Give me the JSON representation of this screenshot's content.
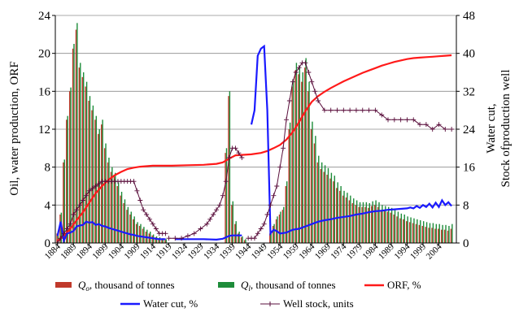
{
  "chart_data": {
    "type": "bar+line",
    "x_tick_labels": [
      "1884",
      "1889",
      "1894",
      "1899",
      "1904",
      "1909",
      "1914",
      "1919",
      "1924",
      "1929",
      "1934",
      "1939",
      "1944",
      "1949",
      "1954",
      "1959",
      "1964",
      "1969",
      "1974",
      "1979",
      "1984",
      "1989",
      "1994",
      "1999",
      "2004"
    ],
    "left_axis": {
      "label": "Oil, water production, ORF",
      "ylim": [
        0,
        24
      ],
      "ticks": [
        "0",
        "4",
        "8",
        "12",
        "16",
        "20",
        "24"
      ]
    },
    "right_axis": {
      "label_line1": "Water cut,",
      "label_line2": "Stock ofproduction well",
      "ylim": [
        0,
        48
      ],
      "ticks": [
        "0",
        "8",
        "16",
        "24",
        "32",
        "40",
        "48"
      ]
    },
    "grid": "horizontal",
    "colors": {
      "qo": "#c0392b",
      "ql": "#1e8c3a",
      "orf": "#ff1a1a",
      "water_cut": "#1a1aff",
      "well_stock": "#5a0f3c"
    },
    "legend": {
      "items": [
        {
          "symbol": "Q",
          "sub": "o",
          "text": ", thousand of tonnes",
          "color_key": "qo",
          "kind": "bar"
        },
        {
          "symbol": "Q",
          "sub": "l",
          "text": ", thousand of tonnes",
          "color_key": "ql",
          "kind": "bar"
        },
        {
          "symbol": "",
          "sub": "",
          "text": "ORF, %",
          "color_key": "orf",
          "kind": "line"
        },
        {
          "symbol": "",
          "sub": "",
          "text": "Water cut, %",
          "color_key": "water_cut",
          "kind": "line"
        },
        {
          "symbol": "",
          "sub": "",
          "text": "Well stock, units",
          "color_key": "well_stock",
          "kind": "marker-line"
        }
      ]
    },
    "bars": {
      "years": [
        1884,
        1885,
        1886,
        1887,
        1888,
        1889,
        1890,
        1891,
        1892,
        1893,
        1894,
        1895,
        1896,
        1897,
        1898,
        1899,
        1900,
        1901,
        1902,
        1903,
        1904,
        1905,
        1906,
        1907,
        1908,
        1909,
        1910,
        1911,
        1912,
        1913,
        1914,
        1915,
        1916,
        1917,
        1918,
        1937,
        1938,
        1939,
        1940,
        1941,
        1942,
        1943,
        1951,
        1952,
        1953,
        1954,
        1955,
        1956,
        1957,
        1958,
        1959,
        1960,
        1961,
        1962,
        1963,
        1964,
        1965,
        1966,
        1967,
        1968,
        1969,
        1970,
        1971,
        1972,
        1973,
        1974,
        1975,
        1976,
        1977,
        1978,
        1979,
        1980,
        1981,
        1982,
        1983,
        1984,
        1985,
        1986,
        1987,
        1988,
        1989,
        1990,
        1991,
        1992,
        1993,
        1994,
        1995,
        1996,
        1997,
        1998,
        1999,
        2000,
        2001,
        2002,
        2003,
        2004,
        2005,
        2006,
        2007,
        2008
      ],
      "qo": [
        1.0,
        3.0,
        8.5,
        13.0,
        16.0,
        20.5,
        22.5,
        18.5,
        17.5,
        16.5,
        15.0,
        14.0,
        13.0,
        11.5,
        12.5,
        10.0,
        8.5,
        7.5,
        7.0,
        6.0,
        5.0,
        4.2,
        3.5,
        3.0,
        2.5,
        2.0,
        1.8,
        1.5,
        1.2,
        1.0,
        0.8,
        0.6,
        0.5,
        0.4,
        0.3,
        9.5,
        15.5,
        4.0,
        2.0,
        1.0,
        0.6,
        0.3,
        1.0,
        1.8,
        2.5,
        3.0,
        3.5,
        6.0,
        12.0,
        16.5,
        18.2,
        17.8,
        17.0,
        18.5,
        16.0,
        12.0,
        10.5,
        8.5,
        7.8,
        7.5,
        7.2,
        6.8,
        6.5,
        5.8,
        5.5,
        5.0,
        4.8,
        4.5,
        4.2,
        4.0,
        3.8,
        3.8,
        3.8,
        3.7,
        3.9,
        4.0,
        3.8,
        3.5,
        3.4,
        3.3,
        3.2,
        3.0,
        2.8,
        2.6,
        2.5,
        2.3,
        2.2,
        2.1,
        2.0,
        1.9,
        1.8,
        1.7,
        1.6,
        1.6,
        1.5,
        1.5,
        1.4,
        1.4,
        1.3,
        1.5
      ],
      "ql": [
        1.2,
        3.2,
        8.8,
        13.4,
        16.4,
        21.0,
        23.2,
        19.0,
        18.0,
        17.0,
        15.5,
        14.5,
        13.4,
        12.0,
        13.0,
        10.5,
        9.0,
        8.0,
        7.4,
        6.4,
        5.4,
        4.6,
        3.8,
        3.3,
        2.8,
        2.2,
        2.0,
        1.7,
        1.4,
        1.2,
        0.9,
        0.7,
        0.6,
        0.5,
        0.4,
        10.0,
        16.0,
        4.4,
        2.3,
        1.2,
        0.7,
        0.4,
        1.2,
        2.0,
        2.8,
        3.3,
        3.8,
        6.5,
        12.7,
        17.3,
        19.0,
        18.7,
        18.0,
        19.5,
        17.0,
        12.8,
        11.3,
        9.2,
        8.5,
        8.2,
        7.9,
        7.4,
        7.1,
        6.4,
        6.0,
        5.5,
        5.3,
        5.0,
        4.7,
        4.5,
        4.3,
        4.3,
        4.3,
        4.2,
        4.4,
        4.5,
        4.3,
        4.0,
        3.9,
        3.8,
        3.7,
        3.5,
        3.3,
        3.1,
        3.0,
        2.8,
        2.7,
        2.6,
        2.5,
        2.4,
        2.3,
        2.2,
        2.1,
        2.1,
        2.0,
        2.0,
        1.9,
        1.9,
        1.8,
        2.0
      ]
    },
    "series_orf": {
      "segments": [
        {
          "x": [
            1884,
            1886,
            1888,
            1890,
            1892,
            1894,
            1896,
            1898,
            1900,
            1902,
            1904,
            1906,
            1908,
            1910,
            1912,
            1914,
            1916,
            1918,
            1920,
            1925,
            1930,
            1934,
            1936,
            1938,
            1940,
            1945,
            1948,
            1950,
            1952,
            1954,
            1956,
            1958,
            1960,
            1962,
            1964,
            1966,
            1968,
            1970,
            1972,
            1974,
            1976,
            1978,
            1980,
            1982,
            1984,
            1986,
            1988,
            1990,
            1992,
            1994,
            1996,
            1998,
            2000,
            2002,
            2004,
            2006,
            2008
          ],
          "y": [
            0.5,
            1.5,
            3.0,
            4.8,
            6.5,
            8.5,
            10.5,
            12.0,
            13.3,
            14.3,
            15.0,
            15.6,
            15.9,
            16.1,
            16.2,
            16.3,
            16.3,
            16.3,
            16.3,
            16.4,
            16.5,
            16.7,
            17.0,
            17.8,
            18.5,
            18.7,
            19.0,
            19.4,
            20.0,
            20.7,
            21.8,
            23.4,
            25.5,
            27.8,
            29.8,
            31.0,
            31.9,
            32.7,
            33.4,
            34.1,
            34.7,
            35.3,
            35.9,
            36.4,
            36.9,
            37.4,
            37.8,
            38.2,
            38.5,
            38.8,
            39.0,
            39.1,
            39.2,
            39.3,
            39.4,
            39.5,
            39.6
          ]
        }
      ]
    },
    "series_water_cut": {
      "segments": [
        {
          "x": [
            1884,
            1885,
            1886,
            1887,
            1888,
            1889,
            1890,
            1891,
            1892,
            1893,
            1894,
            1895,
            1896,
            1897,
            1898,
            1899,
            1900,
            1901,
            1902,
            1903,
            1904,
            1905,
            1906,
            1907,
            1908,
            1909,
            1910,
            1911,
            1912,
            1913,
            1914,
            1915,
            1916,
            1917,
            1918
          ],
          "y": [
            1.5,
            4.5,
            0.5,
            2.0,
            2.2,
            2.5,
            3.5,
            3.7,
            3.8,
            4.5,
            4.3,
            4.4,
            3.8,
            4.0,
            3.6,
            3.5,
            3.2,
            3.0,
            2.8,
            2.6,
            2.4,
            2.2,
            2.0,
            1.8,
            1.7,
            1.5,
            1.4,
            1.3,
            1.2,
            1.1,
            1.0,
            0.9,
            0.8,
            0.8,
            0.8
          ]
        },
        {
          "x": [
            1921,
            1925,
            1930,
            1934,
            1936,
            1938,
            1939,
            1940,
            1941,
            1942
          ],
          "y": [
            0.8,
            0.8,
            0.8,
            0.7,
            0.9,
            1.5,
            1.6,
            1.6,
            1.6,
            1.6
          ]
        },
        {
          "x": [
            1945,
            1946,
            1947,
            1948,
            1949,
            1950,
            1951,
            1952,
            1953,
            1954,
            1956,
            1958,
            1960,
            1962,
            1964,
            1966,
            1968,
            1970,
            1972,
            1974,
            1976,
            1978,
            1980,
            1982,
            1984,
            1986,
            1988,
            1990,
            1992,
            1994,
            1995,
            1996,
            1997,
            1998,
            1999,
            2000,
            2001,
            2002,
            2003,
            2004,
            2005,
            2006,
            2007,
            2008
          ],
          "y": [
            25.0,
            28.0,
            39.5,
            41.0,
            41.5,
            28.0,
            2.0,
            2.8,
            2.5,
            2.0,
            2.2,
            2.8,
            3.0,
            3.5,
            4.0,
            4.5,
            4.8,
            5.0,
            5.3,
            5.5,
            5.7,
            6.0,
            6.2,
            6.5,
            6.7,
            6.8,
            7.0,
            7.1,
            7.2,
            7.3,
            7.5,
            7.3,
            7.8,
            7.4,
            8.0,
            7.6,
            8.3,
            7.5,
            8.5,
            7.6,
            9.0,
            8.0,
            8.6,
            7.8
          ]
        }
      ]
    },
    "series_well_stock": {
      "segments": [
        {
          "x": [
            1884,
            1885,
            1886,
            1887,
            1888,
            1889,
            1890,
            1891,
            1892,
            1893,
            1894,
            1895,
            1896,
            1897,
            1898,
            1899,
            1900,
            1901,
            1902,
            1903,
            1904,
            1905,
            1906,
            1907,
            1908,
            1909,
            1910,
            1911,
            1912,
            1913,
            1914,
            1915,
            1916,
            1917,
            1918
          ],
          "y": [
            0,
            1,
            2,
            3,
            4,
            6,
            7,
            8,
            9,
            10,
            11,
            11.5,
            12,
            12.5,
            13,
            13,
            13,
            13,
            13,
            13,
            13,
            13,
            13,
            13,
            13,
            11,
            9,
            7,
            6,
            5,
            4,
            3,
            2,
            2,
            2
          ]
        },
        {
          "x": [
            1919,
            1921,
            1923,
            1925,
            1927,
            1929,
            1931,
            1932,
            1933,
            1934,
            1935,
            1936,
            1937,
            1938,
            1939,
            1940,
            1941,
            1942
          ],
          "y": [
            1,
            1,
            1,
            1.5,
            2,
            3,
            4,
            5,
            6,
            7,
            8,
            10,
            13,
            18,
            20,
            20,
            19,
            18
          ]
        },
        {
          "x": [
            1944,
            1945,
            1946,
            1947,
            1948,
            1949,
            1950,
            1951,
            1952,
            1953,
            1954,
            1955,
            1956,
            1957,
            1958,
            1959,
            1960,
            1961,
            1962,
            1963,
            1964,
            1965,
            1966,
            1968,
            1970,
            1972,
            1974,
            1976,
            1978,
            1980,
            1982,
            1984,
            1986,
            1988,
            1990,
            1992,
            1994,
            1996,
            1998,
            2000,
            2002,
            2004,
            2006,
            2008
          ],
          "y": [
            1,
            1,
            1,
            2,
            3,
            4,
            6,
            8,
            10,
            12,
            16,
            20,
            26,
            30,
            34,
            36,
            37,
            38,
            38,
            36,
            34,
            32,
            30,
            28,
            28,
            28,
            28,
            28,
            28,
            28,
            28,
            28,
            27,
            26,
            26,
            26,
            26,
            26,
            25,
            25,
            24,
            25,
            24,
            24
          ]
        }
      ]
    }
  }
}
